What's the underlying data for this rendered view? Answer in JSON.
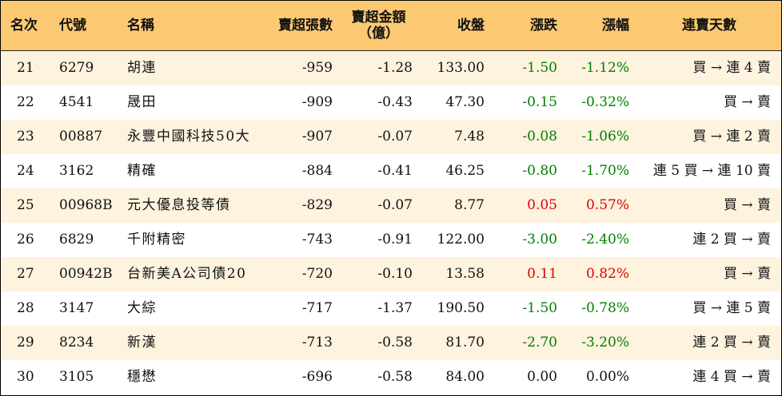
{
  "headers": {
    "rank": "名次",
    "code": "代號",
    "name": "名稱",
    "net_sell_lots": "賣超張數",
    "net_sell_amount_line1": "賣超金額",
    "net_sell_amount_line2": "（億）",
    "close": "收盤",
    "change": "漲跌",
    "change_pct": "漲幅",
    "consecutive_days": "連賣天數"
  },
  "colors": {
    "header_bg": "#fcc973",
    "stripe_bg": "#fef3df",
    "up": "#e00000",
    "down": "#008000"
  },
  "rows": [
    {
      "rank": "21",
      "code": "6279",
      "name": "胡連",
      "lots": "-959",
      "amount": "-1.28",
      "close": "133.00",
      "change": "-1.50",
      "pct": "-1.12%",
      "direction": "down",
      "days": "買 → 連 4 賣"
    },
    {
      "rank": "22",
      "code": "4541",
      "name": "晟田",
      "lots": "-909",
      "amount": "-0.43",
      "close": "47.30",
      "change": "-0.15",
      "pct": "-0.32%",
      "direction": "down",
      "days": "買 → 賣"
    },
    {
      "rank": "23",
      "code": "00887",
      "name": "永豐中國科技50大",
      "lots": "-907",
      "amount": "-0.07",
      "close": "7.48",
      "change": "-0.08",
      "pct": "-1.06%",
      "direction": "down",
      "days": "買 → 連 2 賣"
    },
    {
      "rank": "24",
      "code": "3162",
      "name": "精確",
      "lots": "-884",
      "amount": "-0.41",
      "close": "46.25",
      "change": "-0.80",
      "pct": "-1.70%",
      "direction": "down",
      "days": "連 5 買 → 連 10 賣"
    },
    {
      "rank": "25",
      "code": "00968B",
      "name": "元大優息投等債",
      "lots": "-829",
      "amount": "-0.07",
      "close": "8.77",
      "change": "0.05",
      "pct": "0.57%",
      "direction": "up",
      "days": "買 → 賣"
    },
    {
      "rank": "26",
      "code": "6829",
      "name": "千附精密",
      "lots": "-743",
      "amount": "-0.91",
      "close": "122.00",
      "change": "-3.00",
      "pct": "-2.40%",
      "direction": "down",
      "days": "連 2 買 → 賣"
    },
    {
      "rank": "27",
      "code": "00942B",
      "name": "台新美A公司債20",
      "lots": "-720",
      "amount": "-0.10",
      "close": "13.58",
      "change": "0.11",
      "pct": "0.82%",
      "direction": "up",
      "days": "買 → 賣"
    },
    {
      "rank": "28",
      "code": "3147",
      "name": "大綜",
      "lots": "-717",
      "amount": "-1.37",
      "close": "190.50",
      "change": "-1.50",
      "pct": "-0.78%",
      "direction": "down",
      "days": "買 → 連 5 賣"
    },
    {
      "rank": "29",
      "code": "8234",
      "name": "新漢",
      "lots": "-713",
      "amount": "-0.58",
      "close": "81.70",
      "change": "-2.70",
      "pct": "-3.20%",
      "direction": "down",
      "days": "連 2 買 → 賣"
    },
    {
      "rank": "30",
      "code": "3105",
      "name": "穩懋",
      "lots": "-696",
      "amount": "-0.58",
      "close": "84.00",
      "change": "0.00",
      "pct": "0.00%",
      "direction": "flat",
      "days": "連 4 買 → 賣"
    }
  ]
}
